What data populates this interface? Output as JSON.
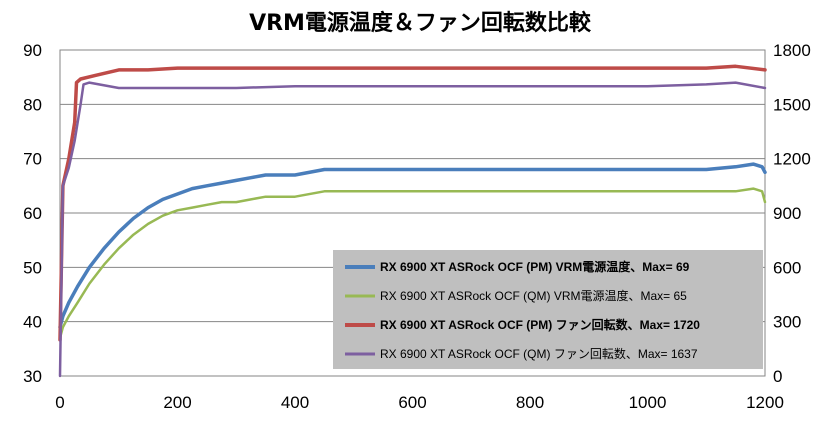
{
  "chart_data": {
    "type": "line",
    "title": "VRM電源温度＆ファン回転数比較",
    "xlim": [
      0,
      1200
    ],
    "ylim": [
      30,
      90
    ],
    "y2lim": [
      0,
      1800
    ],
    "x_ticks": [
      0,
      200,
      400,
      600,
      800,
      1000,
      1200
    ],
    "y_ticks": [
      30,
      40,
      50,
      60,
      70,
      80,
      90
    ],
    "y2_ticks": [
      0,
      300,
      600,
      900,
      1200,
      1500,
      1800
    ],
    "grid": "horizontal",
    "legend_position": "bottom-right",
    "series": [
      {
        "name": "RX 6900 XT ASRock OCF (PM) VRM電源温度、Max= 69",
        "axis": "left",
        "color": "#4a7ebb",
        "bold": true,
        "x": [
          0,
          5,
          15,
          30,
          50,
          75,
          100,
          125,
          150,
          175,
          200,
          225,
          250,
          275,
          300,
          325,
          350,
          400,
          450,
          500,
          600,
          700,
          800,
          900,
          1000,
          1100,
          1150,
          1180,
          1195,
          1200
        ],
        "values": [
          39,
          41,
          43.5,
          46.5,
          50,
          53.5,
          56.5,
          59,
          61,
          62.5,
          63.5,
          64.5,
          65,
          65.5,
          66,
          66.5,
          67,
          67,
          68,
          68,
          68,
          68,
          68,
          68,
          68,
          68,
          68.5,
          69,
          68.5,
          67.5
        ]
      },
      {
        "name": "RX 6900 XT ASRock OCF (QM) VRM電源温度、Max= 65",
        "axis": "left",
        "color": "#98b954",
        "bold": false,
        "x": [
          0,
          5,
          15,
          30,
          50,
          75,
          100,
          125,
          150,
          175,
          200,
          225,
          250,
          275,
          300,
          325,
          350,
          400,
          450,
          500,
          600,
          700,
          800,
          900,
          1000,
          1100,
          1150,
          1180,
          1195,
          1200
        ],
        "values": [
          37,
          39,
          41,
          43.5,
          47,
          50.5,
          53.5,
          56,
          58,
          59.5,
          60.5,
          61,
          61.5,
          62,
          62,
          62.5,
          63,
          63,
          64,
          64,
          64,
          64,
          64,
          64,
          64,
          64,
          64,
          64.5,
          64,
          62
        ]
      },
      {
        "name": "RX 6900 XT ASRock OCF (PM) ファン回転数、Max= 1720",
        "axis": "right",
        "color": "#be4b48",
        "bold": true,
        "x": [
          0,
          5,
          15,
          25,
          28,
          35,
          60,
          100,
          150,
          200,
          300,
          400,
          500,
          600,
          700,
          800,
          900,
          1000,
          1100,
          1150,
          1200
        ],
        "values": [
          200,
          1050,
          1200,
          1400,
          1620,
          1640,
          1660,
          1690,
          1690,
          1700,
          1700,
          1700,
          1700,
          1700,
          1700,
          1700,
          1700,
          1700,
          1700,
          1710,
          1690
        ]
      },
      {
        "name": "RX 6900 XT ASRock OCF (QM) ファン回転数、Max= 1637",
        "axis": "right",
        "color": "#7d5fa0",
        "bold": false,
        "x": [
          0,
          5,
          15,
          25,
          35,
          40,
          50,
          100,
          200,
          300,
          400,
          500,
          600,
          700,
          800,
          900,
          1000,
          1100,
          1150,
          1200
        ],
        "values": [
          0,
          1050,
          1150,
          1300,
          1500,
          1610,
          1620,
          1590,
          1590,
          1590,
          1600,
          1600,
          1600,
          1600,
          1600,
          1600,
          1600,
          1610,
          1620,
          1590
        ]
      }
    ]
  }
}
